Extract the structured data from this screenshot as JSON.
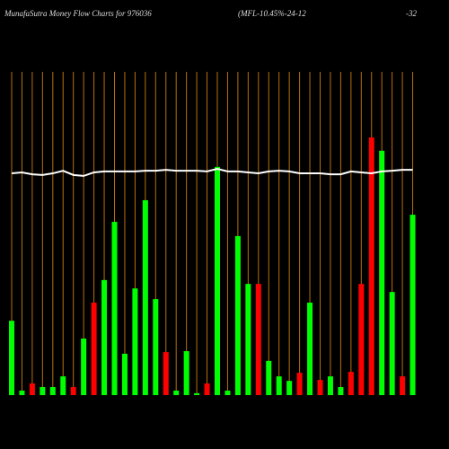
{
  "chart_data": {
    "type": "bar",
    "title": "MunafaSutra  Money Flow  Charts for 976036",
    "subtitle": "(MFL-10.45%-24-12",
    "annotation": "-32",
    "ylim": [
      0,
      100
    ],
    "grid": true,
    "grid_color": "#b8700a",
    "values": [
      23,
      1.4,
      3.6,
      2.5,
      2.5,
      5.8,
      2.5,
      17.5,
      28.6,
      35.6,
      53.6,
      12.8,
      33,
      60.3,
      29.7,
      13.3,
      1.4,
      13.6,
      0.6,
      3.6,
      70.6,
      1.4,
      49.2,
      34.4,
      34.4,
      10.6,
      5.8,
      4.4,
      6.9,
      28.6,
      4.7,
      5.8,
      2.5,
      7.2,
      34.4,
      79.7,
      75.6,
      31.9,
      5.8,
      55.8
    ],
    "colors": [
      "#00ff00",
      "#00ff00",
      "#ff0000",
      "#00ff00",
      "#00ff00",
      "#00ff00",
      "#ff0000",
      "#00ff00",
      "#ff0000",
      "#00ff00",
      "#00ff00",
      "#00ff00",
      "#00ff00",
      "#00ff00",
      "#00ff00",
      "#ff0000",
      "#00ff00",
      "#00ff00",
      "#00ff00",
      "#ff0000",
      "#00ff00",
      "#00ff00",
      "#00ff00",
      "#00ff00",
      "#ff0000",
      "#00ff00",
      "#00ff00",
      "#00ff00",
      "#ff0000",
      "#00ff00",
      "#ff0000",
      "#00ff00",
      "#00ff00",
      "#ff0000",
      "#ff0000",
      "#ff0000",
      "#00ff00",
      "#00ff00",
      "#ff0000",
      "#00ff00"
    ],
    "line": {
      "color": "#ffffff",
      "values": [
        68.6,
        68.9,
        68.3,
        68.1,
        68.6,
        69.4,
        68.1,
        67.8,
        68.9,
        69.2,
        69.2,
        69.2,
        69.2,
        69.4,
        69.4,
        69.7,
        69.4,
        69.4,
        69.4,
        69.2,
        70,
        69.2,
        69.2,
        68.9,
        68.6,
        69.2,
        69.4,
        69.2,
        68.6,
        68.6,
        68.6,
        68.3,
        68.3,
        69.2,
        68.9,
        68.6,
        69.2,
        69.4,
        69.7,
        69.7
      ]
    }
  }
}
